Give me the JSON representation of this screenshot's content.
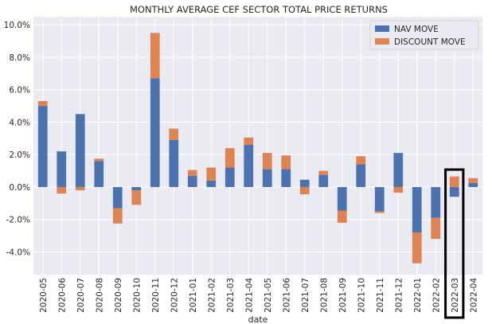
{
  "chart_data": {
    "type": "bar",
    "stacked": true,
    "title": "MONTHLY AVERAGE CEF SECTOR TOTAL PRICE RETURNS",
    "xlabel": "date",
    "ylabel": "",
    "ylim": [
      -5.4,
      10.5
    ],
    "yticks": [
      -4,
      -2,
      0,
      2,
      4,
      6,
      8,
      10
    ],
    "ytick_labels": [
      "-4.0%",
      "-2.0%",
      "0.0%",
      "2.0%",
      "4.0%",
      "6.0%",
      "8.0%",
      "10.0%"
    ],
    "grid": true,
    "legend_position": "top-right",
    "categories": [
      "2020-05",
      "2020-06",
      "2020-07",
      "2020-08",
      "2020-09",
      "2020-10",
      "2020-11",
      "2020-12",
      "2021-01",
      "2021-02",
      "2021-03",
      "2021-04",
      "2021-05",
      "2021-06",
      "2021-07",
      "2021-08",
      "2021-09",
      "2021-10",
      "2021-11",
      "2021-12",
      "2022-01",
      "2022-02",
      "2022-03",
      "2022-04"
    ],
    "series": [
      {
        "name": "NAV MOVE",
        "color": "#4c72b0",
        "values": [
          5.0,
          2.2,
          4.5,
          1.6,
          -1.3,
          -0.2,
          6.7,
          2.9,
          0.7,
          0.4,
          1.2,
          2.6,
          1.1,
          1.1,
          0.45,
          0.75,
          -1.45,
          1.4,
          -1.5,
          2.1,
          -2.8,
          -1.9,
          -0.6,
          0.25
        ]
      },
      {
        "name": "DISCOUNT MOVE",
        "color": "#dd8452",
        "values": [
          0.3,
          -0.4,
          -0.2,
          0.15,
          -0.95,
          -0.9,
          2.8,
          0.7,
          0.35,
          0.8,
          1.2,
          0.45,
          1.0,
          0.85,
          -0.45,
          0.25,
          -0.75,
          0.5,
          -0.1,
          -0.35,
          -1.9,
          -1.3,
          0.65,
          0.3
        ]
      }
    ],
    "highlight_category": "2022-03",
    "highlight_color": "#000000"
  }
}
